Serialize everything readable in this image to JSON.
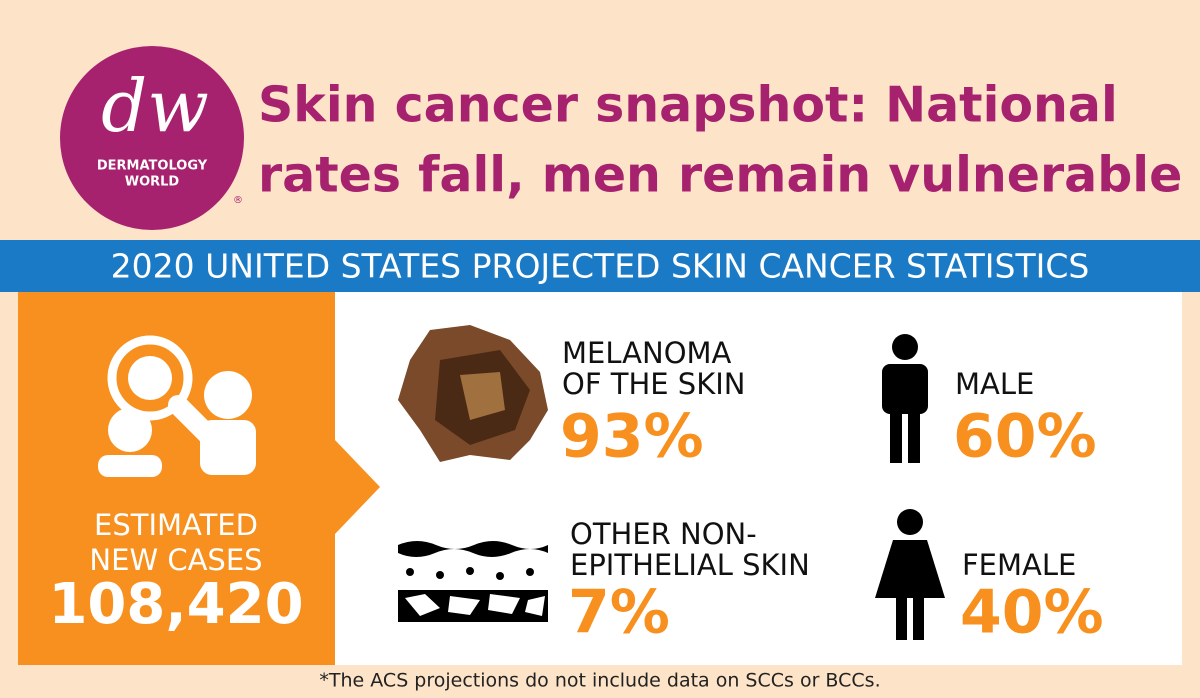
{
  "logo": {
    "mark": "dw",
    "line1": "DERMATOLOGY",
    "line2": "WORLD",
    "registered": "®"
  },
  "header": {
    "title_lines": [
      "Skin cancer snapshot: National",
      "rates fall, men remain vulnerable"
    ]
  },
  "banner": "2020 UNITED STATES PROJECTED SKIN CANCER STATISTICS",
  "total": {
    "label_lines": [
      "ESTIMATED",
      "NEW CASES"
    ],
    "value": "108,420"
  },
  "stats": [
    {
      "label_lines": [
        "MELANOMA",
        "OF THE SKIN"
      ],
      "value": "93%"
    },
    {
      "label_lines": [
        "MALE"
      ],
      "value": "60%"
    },
    {
      "label_lines": [
        "OTHER NON-",
        "EPITHELIAL SKIN"
      ],
      "value": "7%"
    },
    {
      "label_lines": [
        "FEMALE"
      ],
      "value": "40%"
    }
  ],
  "footnote": "*The ACS projections do not include data on SCCs or BCCs."
}
